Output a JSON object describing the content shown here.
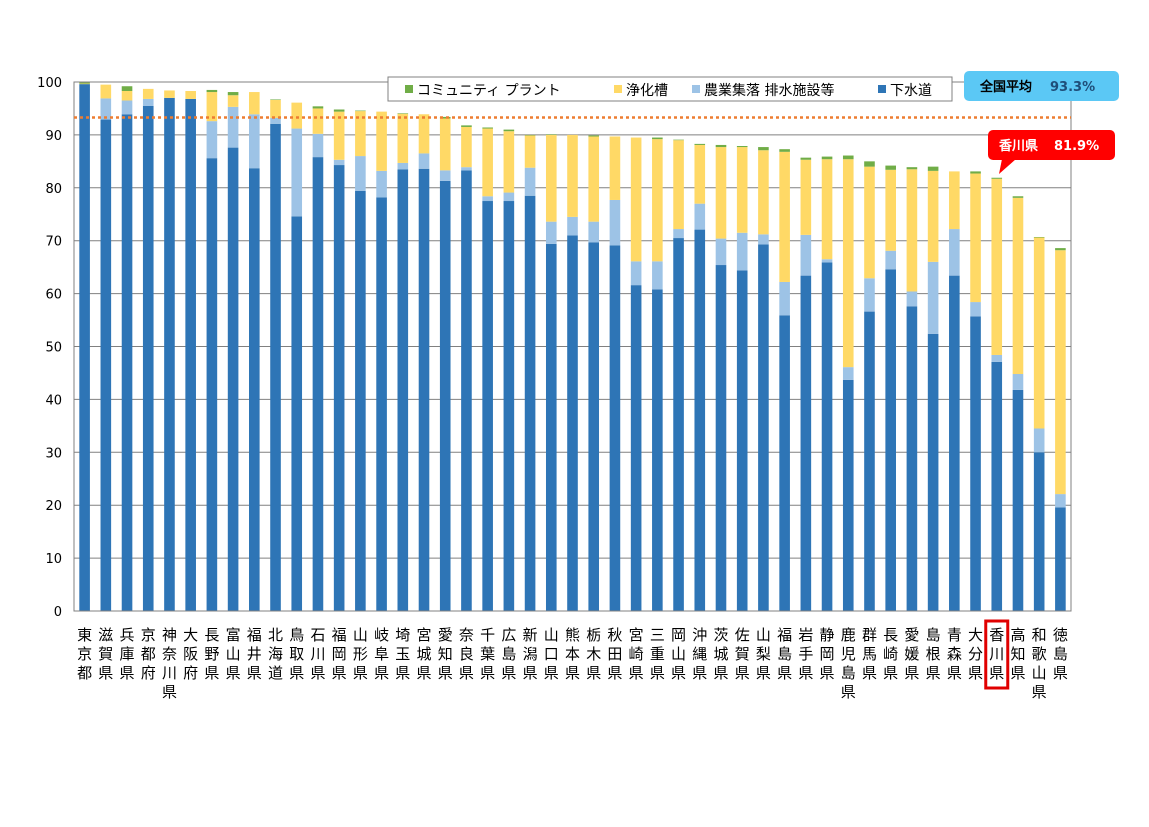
{
  "chart_data": {
    "type": "bar",
    "stacked": true,
    "title": "",
    "xlabel": "",
    "ylabel": "",
    "ylim": [
      0,
      100
    ],
    "yticks": [
      0,
      10,
      20,
      30,
      40,
      50,
      60,
      70,
      80,
      90,
      100
    ],
    "grid": true,
    "legend_position": "top-right",
    "legend": [
      "コミュニティ プラント",
      "浄化槽",
      "農業集落 排水施設等",
      "下水道"
    ],
    "colors": {
      "sewer": "#2E75B6",
      "agri": "#9DC3E6",
      "septic": "#FFD966",
      "community": "#70AD47",
      "average_line": "#ED7D31",
      "highlight": "#E00000",
      "avg_callout_bg": "#5BC8F5",
      "kagawa_callout_bg": "#FF0000"
    },
    "categories": [
      "東京都",
      "滋賀県",
      "兵庫県",
      "京都府",
      "神奈川県",
      "大阪府",
      "長野県",
      "富山県",
      "福井県",
      "北海道",
      "鳥取県",
      "石川県",
      "福岡県",
      "山形県",
      "岐阜県",
      "埼玉県",
      "宮城県",
      "愛知県",
      "奈良県",
      "千葉県",
      "広島県",
      "新潟県",
      "山口県",
      "熊本県",
      "栃木県",
      "秋田県",
      "宮崎県",
      "三重県",
      "岡山県",
      "沖縄県",
      "茨城県",
      "佐賀県",
      "山梨県",
      "福島県",
      "岩手県",
      "静岡県",
      "鹿児島県",
      "群馬県",
      "長崎県",
      "愛媛県",
      "島根県",
      "青森県",
      "大分県",
      "香川県",
      "高知県",
      "和歌山県",
      "徳島県"
    ],
    "series": [
      {
        "name": "下水道",
        "color_key": "sewer",
        "values": [
          99.6,
          92.9,
          93.9,
          95.5,
          97.0,
          96.8,
          85.6,
          87.6,
          83.7,
          92.1,
          74.6,
          85.8,
          84.3,
          79.4,
          78.2,
          83.5,
          83.6,
          81.3,
          83.3,
          77.5,
          77.5,
          78.5,
          69.4,
          71.0,
          69.7,
          69.1,
          61.6,
          60.8,
          70.5,
          72.1,
          65.4,
          64.4,
          69.3,
          55.9,
          63.4,
          65.9,
          43.7,
          56.6,
          64.6,
          57.6,
          52.4,
          63.4,
          55.7,
          47.1,
          41.8,
          30.0,
          19.6
        ]
      },
      {
        "name": "農業集落 排水施設等",
        "color_key": "agri",
        "values": [
          0.0,
          4.0,
          2.6,
          1.3,
          0.0,
          0.0,
          7.0,
          7.7,
          10.2,
          1.1,
          16.6,
          4.4,
          1.0,
          6.6,
          5.0,
          1.2,
          2.9,
          2.0,
          0.6,
          0.9,
          1.6,
          5.3,
          4.2,
          3.5,
          3.9,
          8.6,
          4.5,
          5.3,
          1.7,
          4.9,
          5.0,
          7.1,
          1.9,
          6.3,
          7.7,
          0.6,
          2.4,
          6.3,
          3.5,
          2.8,
          13.6,
          8.8,
          2.7,
          1.3,
          3.0,
          4.5,
          2.5
        ]
      },
      {
        "name": "浄化槽",
        "color_key": "septic",
        "values": [
          0.1,
          2.6,
          1.8,
          1.9,
          1.4,
          1.5,
          5.5,
          2.2,
          4.2,
          3.4,
          4.9,
          4.8,
          9.1,
          8.5,
          11.2,
          9.3,
          7.4,
          9.8,
          7.6,
          12.8,
          11.6,
          6.1,
          16.4,
          15.5,
          16.1,
          12.0,
          23.4,
          23.1,
          16.8,
          11.1,
          17.3,
          16.2,
          15.9,
          24.6,
          14.2,
          18.9,
          39.3,
          21.1,
          15.3,
          23.1,
          17.2,
          10.9,
          24.3,
          33.3,
          33.3,
          36.1,
          46.1
        ]
      },
      {
        "name": "コミュニティ プラント",
        "color_key": "community",
        "values": [
          0.2,
          0.0,
          0.9,
          0.0,
          0.0,
          0.0,
          0.4,
          0.6,
          0.0,
          0.1,
          0.0,
          0.4,
          0.4,
          0.1,
          0.0,
          0.1,
          0.0,
          0.3,
          0.3,
          0.2,
          0.3,
          0.1,
          0.1,
          0.0,
          0.2,
          0.0,
          0.0,
          0.3,
          0.1,
          0.2,
          0.4,
          0.2,
          0.6,
          0.5,
          0.4,
          0.5,
          0.7,
          1.0,
          0.8,
          0.4,
          0.8,
          0.0,
          0.4,
          0.2,
          0.3,
          0.1,
          0.4
        ]
      }
    ],
    "average": {
      "value": 93.3,
      "label": "全国平均",
      "value_text": "93.3%"
    },
    "highlight": {
      "category": "香川県",
      "label": "香川県",
      "value_text": "81.9%"
    }
  }
}
